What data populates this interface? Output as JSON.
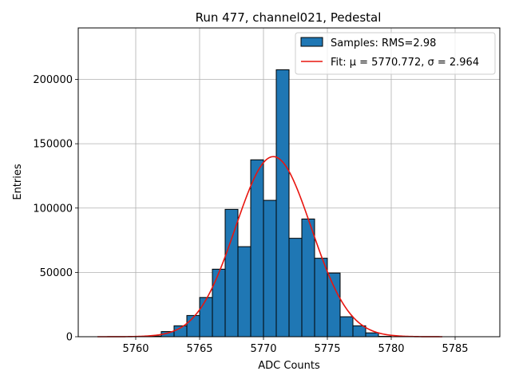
{
  "chart_data": {
    "type": "bar",
    "title": "Run 477, channel021, Pedestal",
    "xlabel": "ADC Counts",
    "ylabel": "Entries",
    "xlim": [
      5755.5,
      5788.5
    ],
    "ylim": [
      0,
      240000
    ],
    "xticks": [
      5760,
      5765,
      5770,
      5775,
      5780,
      5785
    ],
    "yticks": [
      0,
      50000,
      100000,
      150000,
      200000
    ],
    "grid": true,
    "legend_position": "top-right",
    "bins": {
      "edges": [
        5761,
        5762,
        5763,
        5764,
        5765,
        5766,
        5767,
        5768,
        5769,
        5770,
        5771,
        5772,
        5773,
        5774,
        5775,
        5776,
        5777,
        5778,
        5779,
        5780
      ],
      "counts": [
        500,
        4000,
        8500,
        16500,
        30500,
        52500,
        99000,
        70000,
        137500,
        106000,
        207500,
        76500,
        91500,
        61000,
        49500,
        15500,
        8500,
        3000,
        300
      ]
    },
    "fit": {
      "mu": 5770.772,
      "sigma": 2.964,
      "amplitude": 140000,
      "x_range": [
        5757,
        5784
      ]
    },
    "legend": [
      {
        "label": "Samples: RMS=2.98",
        "kind": "patch",
        "color": "#1f77b4"
      },
      {
        "label": "Fit: μ = 5770.772, σ = 2.964",
        "kind": "line",
        "color": "#e8150f"
      }
    ]
  }
}
